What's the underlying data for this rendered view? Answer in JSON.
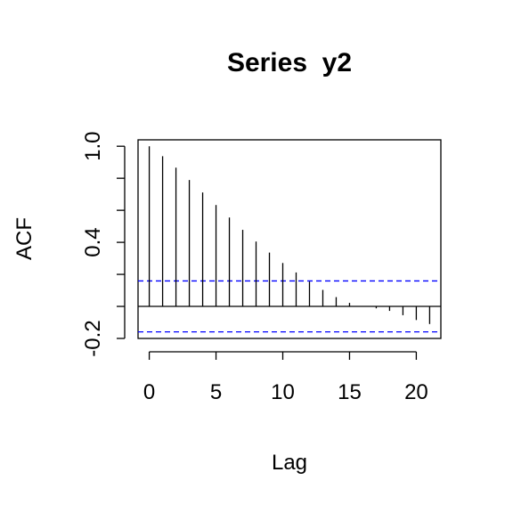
{
  "chart_data": {
    "type": "bar",
    "title": "Series  y2",
    "xlabel": "Lag",
    "ylabel": "ACF",
    "xlim": [
      -0.84,
      21.84
    ],
    "ylim": [
      -0.2,
      1.04
    ],
    "x_ticks": [
      0,
      5,
      10,
      15,
      20
    ],
    "x_tick_labels": [
      "0",
      "5",
      "10",
      "15",
      "20"
    ],
    "y_ticks": [
      -0.2,
      0.0,
      0.2,
      0.4,
      0.6,
      0.8,
      1.0
    ],
    "y_tick_labels": [
      "-0.2",
      "",
      "",
      "0.4",
      "",
      "",
      "1.0"
    ],
    "lags": [
      0,
      1,
      2,
      3,
      4,
      5,
      6,
      7,
      8,
      9,
      10,
      11,
      12,
      13,
      14,
      15,
      16,
      17,
      18,
      19,
      20,
      21
    ],
    "values": [
      1.0,
      0.938,
      0.866,
      0.789,
      0.711,
      0.633,
      0.555,
      0.478,
      0.405,
      0.336,
      0.271,
      0.212,
      0.155,
      0.103,
      0.058,
      0.022,
      -0.002,
      -0.012,
      -0.028,
      -0.055,
      -0.085,
      -0.11
    ],
    "confidence_bound": 0.159,
    "grid": false,
    "colors": {
      "bars": "#000000",
      "confidence": "#0000ff",
      "axes": "#000000"
    }
  }
}
